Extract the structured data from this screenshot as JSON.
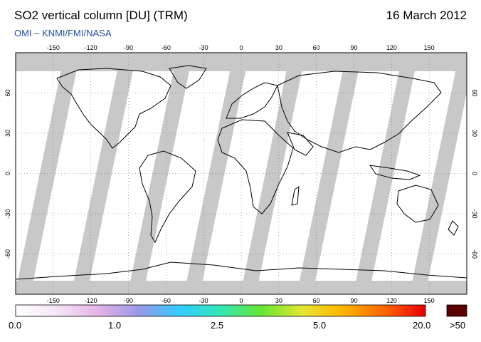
{
  "header": {
    "title": "SO2 vertical column [DU] (TRM)",
    "date": "16 March 2012",
    "subtitle": "OMI  –  KNMI/FMI/NASA"
  },
  "map": {
    "projection": "equirectangular",
    "lon_range": [
      -180,
      180
    ],
    "lat_range": [
      -90,
      90
    ],
    "lon_ticks": [
      -150,
      -120,
      -90,
      -60,
      -30,
      0,
      30,
      60,
      90,
      120,
      150
    ],
    "lat_ticks": [
      60,
      30,
      0,
      -30,
      -60
    ],
    "lon_tick_labels": [
      "-150",
      "-120",
      "-90",
      "-60",
      "-30",
      "0",
      "30",
      "60",
      "90",
      "120",
      "150"
    ],
    "lat_tick_labels": [
      "60",
      "30",
      "0",
      "-30",
      "-60"
    ],
    "colors": {
      "no_data": "#c8c8c8",
      "orbit_gap_land": "#a6a6a6",
      "background": "#ffffff",
      "coast": "#000000"
    }
  },
  "colorbar": {
    "labels": [
      "0.0",
      "1.0",
      "2.5",
      "5.0",
      "20.0"
    ],
    "overflow_label": ">50",
    "overflow_color": "#5a0000",
    "stops": [
      "#ffffff",
      "#f5e6f5",
      "#e6b3e6",
      "#9999e6",
      "#33ccff",
      "#33e6b3",
      "#66e633",
      "#e6e633",
      "#ffb300",
      "#ff6600",
      "#e60000"
    ]
  }
}
